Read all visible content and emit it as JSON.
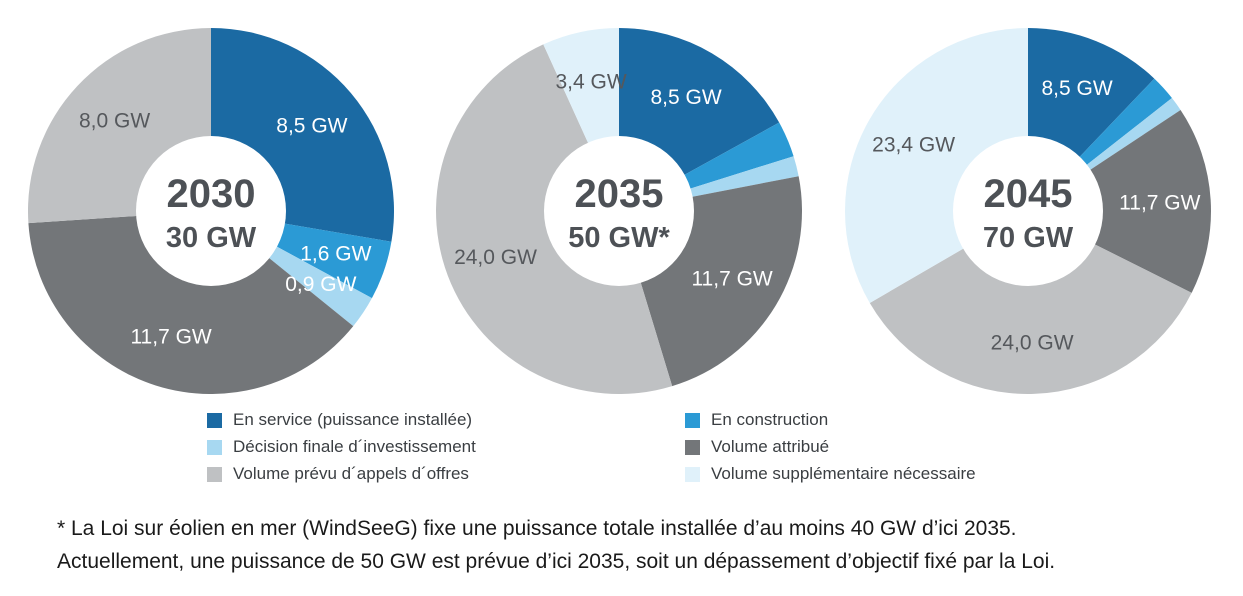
{
  "page": {
    "background": "#FFFFFF"
  },
  "colors": {
    "en_service": "#1B6AA3",
    "en_construction": "#2B9AD5",
    "decision_finale": "#A7D8F1",
    "volume_attribue": "#737679",
    "volume_prevu": "#BFC1C3",
    "volume_supplementaire": "#E0F1FA",
    "center_text": "#4D5156",
    "dark_label": "#55585C",
    "light_label": "#FFFFFF"
  },
  "chart_data": [
    {
      "type": "pie",
      "title": "2030",
      "center_total": "30 GW",
      "unit": "GW",
      "slices": [
        {
          "name": "En service (puissance installée)",
          "value": 8.5,
          "label": "8,5 GW",
          "color_key": "en_service",
          "label_tone": "light"
        },
        {
          "name": "En construction",
          "value": 1.6,
          "label": "1,6 GW",
          "color_key": "en_construction",
          "label_tone": "light"
        },
        {
          "name": "Décision finale d´investissement",
          "value": 0.9,
          "label": "0,9 GW",
          "color_key": "decision_finale",
          "label_tone": "light"
        },
        {
          "name": "Volume attribué",
          "value": 11.7,
          "label": "11,7 GW",
          "color_key": "volume_attribue",
          "label_tone": "light"
        },
        {
          "name": "Volume prévu d´appels d´offres",
          "value": 8.0,
          "label": "8,0 GW",
          "color_key": "volume_prevu",
          "label_tone": "dark"
        }
      ]
    },
    {
      "type": "pie",
      "title": "2035",
      "center_total": "50 GW*",
      "unit": "GW",
      "slices": [
        {
          "name": "En service (puissance installée)",
          "value": 8.5,
          "label": "8,5 GW",
          "color_key": "en_service",
          "label_tone": "light"
        },
        {
          "name": "En construction",
          "value": 1.6,
          "label": null,
          "color_key": "en_construction",
          "label_tone": "light"
        },
        {
          "name": "Décision finale d´investissement",
          "value": 0.9,
          "label": null,
          "color_key": "decision_finale",
          "label_tone": "light"
        },
        {
          "name": "Volume attribué",
          "value": 11.7,
          "label": "11,7 GW",
          "color_key": "volume_attribue",
          "label_tone": "light"
        },
        {
          "name": "Volume prévu d´appels d´offres",
          "value": 24.0,
          "label": "24,0 GW",
          "color_key": "volume_prevu",
          "label_tone": "dark"
        },
        {
          "name": "Volume supplémentaire nécessaire",
          "value": 3.4,
          "label": "3,4 GW",
          "color_key": "volume_supplementaire",
          "label_tone": "dark"
        }
      ]
    },
    {
      "type": "pie",
      "title": "2045",
      "center_total": "70 GW",
      "unit": "GW",
      "slices": [
        {
          "name": "En service (puissance installée)",
          "value": 8.5,
          "label": "8,5 GW",
          "color_key": "en_service",
          "label_tone": "light"
        },
        {
          "name": "En construction",
          "value": 1.6,
          "label": null,
          "color_key": "en_construction",
          "label_tone": "light"
        },
        {
          "name": "Décision finale d´investissement",
          "value": 0.9,
          "label": null,
          "color_key": "decision_finale",
          "label_tone": "light"
        },
        {
          "name": "Volume attribué",
          "value": 11.7,
          "label": "11,7 GW",
          "color_key": "volume_attribue",
          "label_tone": "light"
        },
        {
          "name": "Volume prévu d´appels d´offres",
          "value": 24.0,
          "label": "24,0 GW",
          "color_key": "volume_prevu",
          "label_tone": "dark"
        },
        {
          "name": "Volume supplémentaire nécessaire",
          "value": 23.4,
          "label": "23,4 GW",
          "color_key": "volume_supplementaire",
          "label_tone": "dark"
        }
      ]
    }
  ],
  "legend": {
    "columns": [
      [
        {
          "label": "En service (puissance installée)",
          "color_key": "en_service"
        },
        {
          "label": "Décision finale d´investissement",
          "color_key": "decision_finale"
        },
        {
          "label": "Volume prévu d´appels d´offres",
          "color_key": "volume_prevu"
        }
      ],
      [
        {
          "label": "En construction",
          "color_key": "en_construction"
        },
        {
          "label": "Volume attribué",
          "color_key": "volume_attribue"
        },
        {
          "label": "Volume supplémentaire nécessaire",
          "color_key": "volume_supplementaire"
        }
      ]
    ]
  },
  "footnote": {
    "line1": "* La Loi sur éolien en mer (WindSeeG) fixe une puissance totale installée d’au moins 40 GW d’ici 2035.",
    "line2": "Actuellement, une puissance de 50 GW est prévue d’ici 2035, soit un dépassement d’objectif fixé par la Loi."
  }
}
